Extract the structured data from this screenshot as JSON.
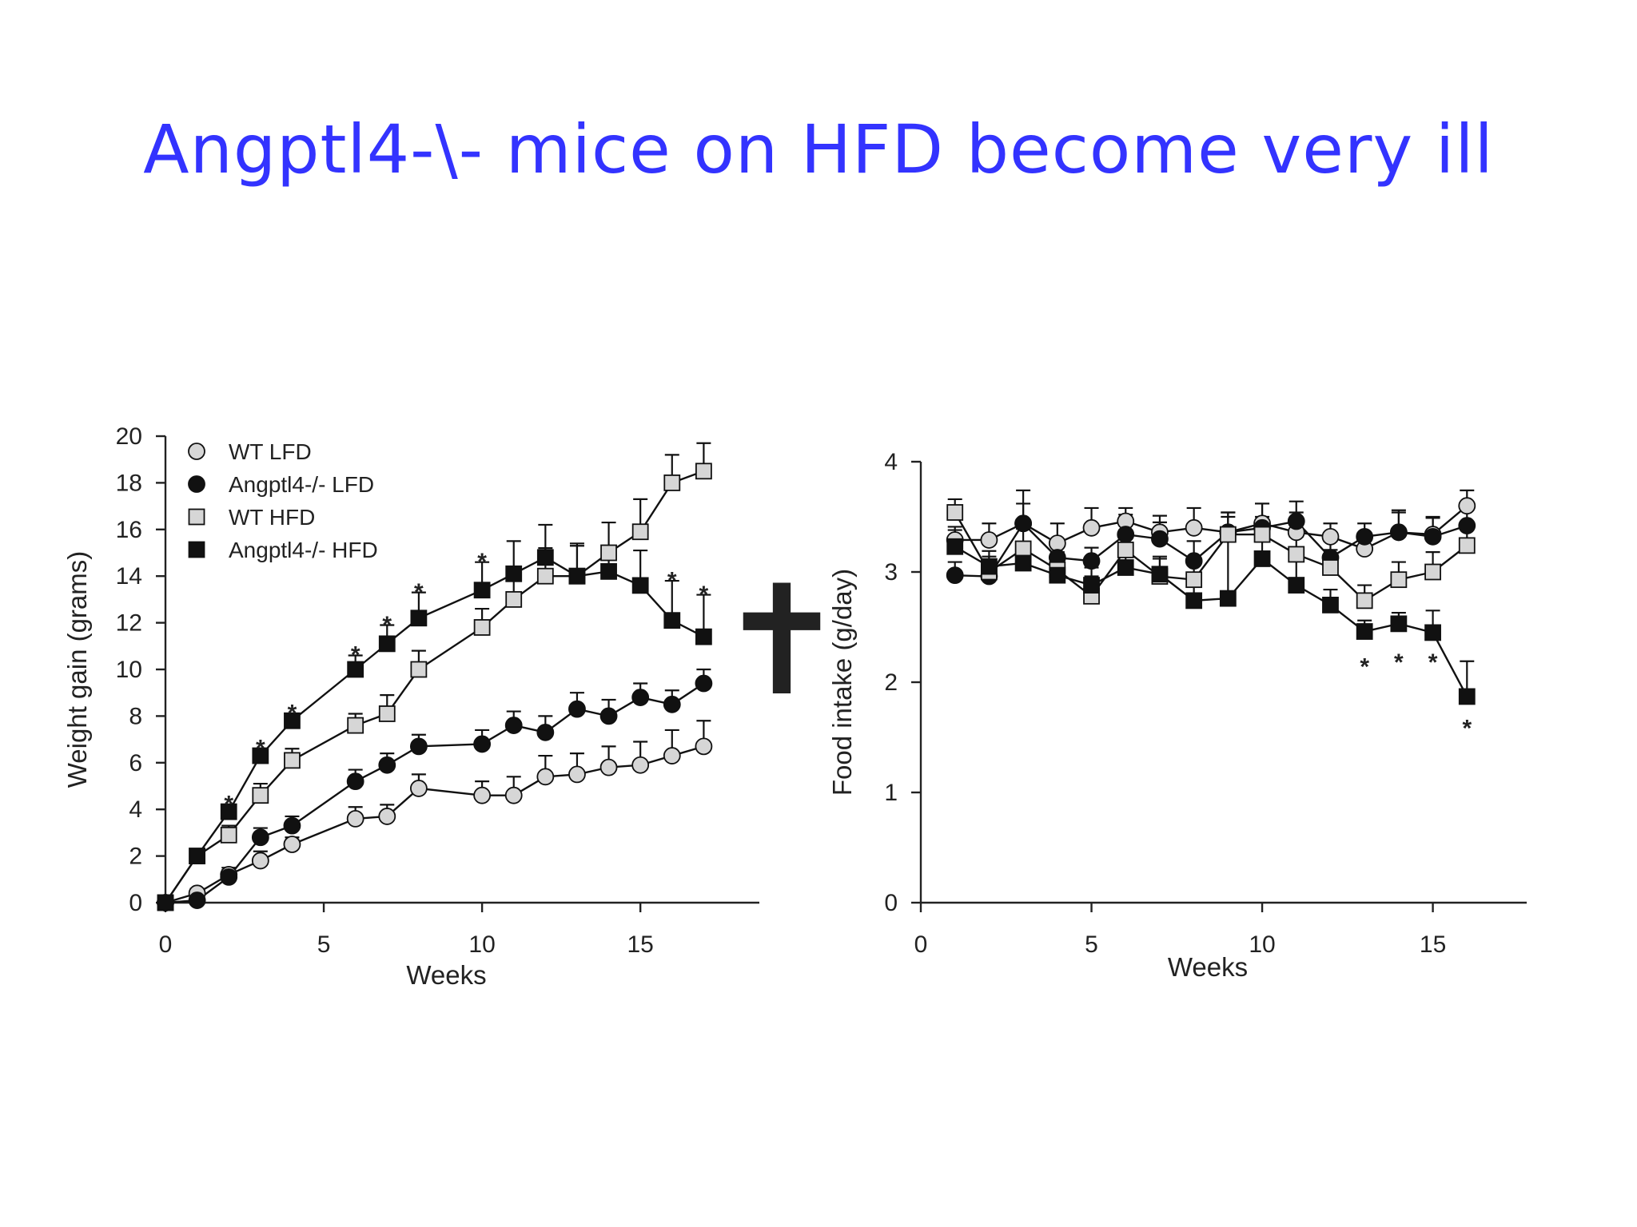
{
  "title": "Angptl4-\\- mice on HFD become very ill",
  "symbols": {
    "wt_lfd": {
      "shape": "circle",
      "fill": "#d6d6d6"
    },
    "ko_lfd": {
      "shape": "circle",
      "fill": "#111111"
    },
    "wt_hfd": {
      "shape": "square",
      "fill": "#d6d6d6"
    },
    "ko_hfd": {
      "shape": "square",
      "fill": "#111111"
    }
  },
  "chart_data": [
    {
      "type": "line",
      "xlabel": "Weeks",
      "ylabel": "Weight gain (grams)",
      "xlim": [
        0,
        18
      ],
      "ylim": [
        0,
        20
      ],
      "xticks": [
        0,
        5,
        10,
        15
      ],
      "yticks": [
        0,
        2,
        4,
        6,
        8,
        10,
        12,
        14,
        16,
        18,
        20
      ],
      "legend_position": "top-left",
      "annotation": "✝",
      "series": [
        {
          "name": "WT LFD",
          "key": "wt_lfd",
          "x": [
            0,
            1,
            2,
            3,
            4,
            6,
            7,
            8,
            10,
            11,
            12,
            13,
            14,
            15,
            16,
            17
          ],
          "y": [
            0,
            0.4,
            1.2,
            1.8,
            2.5,
            3.6,
            3.7,
            4.9,
            4.6,
            4.6,
            5.4,
            5.5,
            5.8,
            5.9,
            6.3,
            6.7
          ],
          "err": [
            0.1,
            0.2,
            0.3,
            0.4,
            0.3,
            0.5,
            0.5,
            0.6,
            0.6,
            0.8,
            0.9,
            0.9,
            0.9,
            1.0,
            1.1,
            1.1
          ]
        },
        {
          "name": "Angptl4-/- LFD",
          "key": "ko_lfd",
          "x": [
            0,
            1,
            2,
            3,
            4,
            6,
            7,
            8,
            10,
            11,
            12,
            13,
            14,
            15,
            16,
            17
          ],
          "y": [
            0,
            0.1,
            1.1,
            2.8,
            3.3,
            5.2,
            5.9,
            6.7,
            6.8,
            7.6,
            7.3,
            8.3,
            8.0,
            8.8,
            8.5,
            9.4
          ],
          "err": [
            0.1,
            0.2,
            0.3,
            0.4,
            0.4,
            0.5,
            0.5,
            0.5,
            0.6,
            0.6,
            0.7,
            0.7,
            0.7,
            0.6,
            0.6,
            0.6
          ]
        },
        {
          "name": "WT HFD",
          "key": "wt_hfd",
          "x": [
            0,
            1,
            2,
            3,
            4,
            6,
            7,
            8,
            10,
            11,
            12,
            13,
            14,
            15,
            16,
            17
          ],
          "y": [
            0,
            2.0,
            2.9,
            4.6,
            6.1,
            7.6,
            8.1,
            10.0,
            11.8,
            13.0,
            14.0,
            14.0,
            15.0,
            15.9,
            18.0,
            18.5
          ],
          "err": [
            0.1,
            0.3,
            0.4,
            0.5,
            0.5,
            0.5,
            0.8,
            0.8,
            0.8,
            0.9,
            1.2,
            1.4,
            1.3,
            1.4,
            1.2,
            1.2
          ]
        },
        {
          "name": "Angptl4-/- HFD",
          "key": "ko_hfd",
          "x": [
            0,
            1,
            2,
            3,
            4,
            6,
            7,
            8,
            10,
            11,
            12,
            13,
            14,
            15,
            16,
            17
          ],
          "y": [
            0,
            2.0,
            3.9,
            6.3,
            7.8,
            10.0,
            11.1,
            12.2,
            13.4,
            14.1,
            14.8,
            14.0,
            14.2,
            13.6,
            12.1,
            11.4
          ],
          "err": [
            0.1,
            0.2,
            0.3,
            0.3,
            0.3,
            0.6,
            0.8,
            1.1,
            1.2,
            1.4,
            1.4,
            1.3,
            0.8,
            1.5,
            1.7,
            1.8
          ]
        }
      ],
      "significance": [
        {
          "x": 2,
          "y": 4.5
        },
        {
          "x": 3,
          "y": 6.9
        },
        {
          "x": 4,
          "y": 8.4
        },
        {
          "x": 6,
          "y": 10.9
        },
        {
          "x": 7,
          "y": 12.2
        },
        {
          "x": 8,
          "y": 13.6
        },
        {
          "x": 10,
          "y": 14.9
        },
        {
          "x": 16,
          "y": 14.1
        },
        {
          "x": 17,
          "y": 13.5
        }
      ]
    },
    {
      "type": "line",
      "xlabel": "Weeks",
      "ylabel": "Food intake (g/day)",
      "xlim": [
        0,
        17
      ],
      "ylim": [
        0,
        4
      ],
      "xticks": [
        0,
        5,
        10,
        15
      ],
      "yticks": [
        0,
        1,
        2,
        3,
        4
      ],
      "series": [
        {
          "name": "WT LFD",
          "key": "wt_lfd",
          "x": [
            1,
            2,
            3,
            4,
            5,
            6,
            7,
            8,
            9,
            10,
            11,
            12,
            13,
            14,
            15,
            16
          ],
          "y": [
            3.29,
            3.29,
            3.44,
            3.26,
            3.4,
            3.46,
            3.36,
            3.4,
            3.36,
            3.44,
            3.36,
            3.32,
            3.21,
            3.36,
            3.34,
            3.6
          ],
          "err": [
            0.12,
            0.15,
            0.18,
            0.18,
            0.18,
            0.12,
            0.15,
            0.18,
            0.18,
            0.18,
            0.18,
            0.12,
            0.12,
            0.18,
            0.15,
            0.14
          ]
        },
        {
          "name": "Angptl4-/- LFD",
          "key": "ko_lfd",
          "x": [
            1,
            2,
            3,
            4,
            5,
            6,
            7,
            8,
            9,
            10,
            11,
            12,
            13,
            14,
            15,
            16
          ],
          "y": [
            2.97,
            2.96,
            3.44,
            3.13,
            3.1,
            3.34,
            3.3,
            3.1,
            3.36,
            3.4,
            3.46,
            3.13,
            3.32,
            3.36,
            3.32,
            3.42
          ],
          "err": [
            0.12,
            0.12,
            0.3,
            0.15,
            0.12,
            0.18,
            0.15,
            0.18,
            0.18,
            0.22,
            0.18,
            0.15,
            0.12,
            0.2,
            0.18,
            0.15
          ]
        },
        {
          "name": "WT HFD",
          "key": "wt_hfd",
          "x": [
            1,
            2,
            3,
            4,
            5,
            6,
            7,
            8,
            9,
            10,
            11,
            12,
            13,
            14,
            15,
            16
          ],
          "y": [
            3.54,
            3.0,
            3.21,
            3.02,
            2.78,
            3.2,
            2.96,
            2.93,
            3.34,
            3.34,
            3.16,
            3.04,
            2.74,
            2.93,
            3.0,
            3.24
          ],
          "err": [
            0.12,
            0.14,
            0.18,
            0.16,
            0.18,
            0.18,
            0.16,
            0.18,
            0.16,
            0.16,
            0.16,
            0.16,
            0.14,
            0.16,
            0.18,
            0.15
          ]
        },
        {
          "name": "Angptl4-/- HFD",
          "key": "ko_hfd",
          "x": [
            1,
            2,
            3,
            4,
            5,
            6,
            7,
            8,
            9,
            10,
            11,
            12,
            13,
            14,
            15,
            16
          ],
          "y": [
            3.23,
            3.05,
            3.08,
            2.97,
            2.88,
            3.04,
            2.98,
            2.74,
            2.76,
            3.12,
            2.88,
            2.7,
            2.46,
            2.53,
            2.45,
            1.87
          ],
          "err": [
            0.15,
            0.14,
            0.16,
            0.14,
            0.16,
            0.16,
            0.16,
            0.16,
            0.52,
            0.2,
            0.24,
            0.14,
            0.1,
            0.1,
            0.2,
            0.32
          ]
        }
      ],
      "significance": [
        {
          "x": 13,
          "y": 2.2
        },
        {
          "x": 14,
          "y": 2.24
        },
        {
          "x": 15,
          "y": 2.24
        },
        {
          "x": 16,
          "y": 1.64
        }
      ]
    }
  ]
}
